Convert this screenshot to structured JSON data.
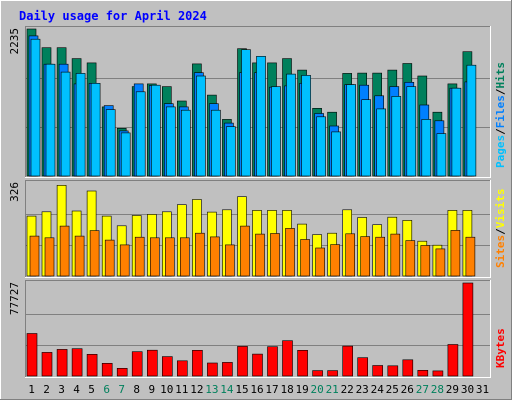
{
  "title": "Daily usage for April 2024",
  "colors": {
    "background": "#c0c0c0",
    "title": "#0000ff",
    "hits": "#00805c",
    "files": "#0080ff",
    "pages": "#00c0ff",
    "visits": "#ffff00",
    "sites": "#ff8000",
    "kbytes": "#ff0000",
    "weekend_label": "#00805c",
    "weekday_label": "#000080",
    "axis_label": "#000000"
  },
  "chart_data": [
    {
      "type": "bar",
      "name": "hits-files-pages",
      "ymax_label": "2235",
      "ylim": [
        0,
        2235
      ],
      "legend": [
        "Pages",
        "/",
        "Files",
        "/",
        "Hits"
      ],
      "categories": [
        "1",
        "2",
        "3",
        "4",
        "5",
        "6",
        "7",
        "8",
        "9",
        "10",
        "11",
        "12",
        "13",
        "14",
        "15",
        "16",
        "17",
        "18",
        "19",
        "20",
        "21",
        "22",
        "23",
        "24",
        "25",
        "26",
        "27",
        "28",
        "29",
        "30",
        "31"
      ],
      "series": [
        {
          "name": "Hits",
          "color": "#00805c",
          "values": [
            2235,
            1950,
            1950,
            1785,
            1720,
            1050,
            725,
            1360,
            1400,
            1360,
            1140,
            1705,
            1230,
            860,
            1935,
            1720,
            1720,
            1785,
            1610,
            1030,
            970,
            1560,
            1565,
            1565,
            1610,
            1710,
            1520,
            970,
            1400,
            1890,
            null
          ]
        },
        {
          "name": "Files",
          "color": "#0080ff",
          "values": [
            2130,
            1700,
            1700,
            1400,
            1410,
            1070,
            685,
            1400,
            1375,
            1100,
            1050,
            1570,
            1100,
            805,
            1570,
            1570,
            1350,
            1370,
            1410,
            950,
            760,
            1390,
            1380,
            1220,
            1360,
            1425,
            1080,
            840,
            1335,
            1430,
            null
          ]
        },
        {
          "name": "Pages",
          "color": "#00c0ff",
          "values": [
            2080,
            1700,
            1580,
            1560,
            1410,
            1010,
            655,
            1280,
            1380,
            1050,
            1000,
            1520,
            1000,
            750,
            1920,
            1820,
            1360,
            1550,
            1530,
            900,
            670,
            1390,
            1160,
            1020,
            1210,
            1360,
            860,
            645,
            1335,
            1685,
            null
          ]
        }
      ]
    },
    {
      "type": "bar",
      "name": "visits-sites",
      "ymax_label": "326",
      "ylim": [
        0,
        326
      ],
      "legend": [
        "Sites",
        "/",
        "Visits"
      ],
      "categories": [
        "1",
        "2",
        "3",
        "4",
        "5",
        "6",
        "7",
        "8",
        "9",
        "10",
        "11",
        "12",
        "13",
        "14",
        "15",
        "16",
        "17",
        "18",
        "19",
        "20",
        "21",
        "22",
        "23",
        "24",
        "25",
        "26",
        "27",
        "28",
        "29",
        "30",
        "31"
      ],
      "series": [
        {
          "name": "Visits",
          "color": "#ffff00",
          "values": [
            210,
            225,
            318,
            228,
            298,
            210,
            176,
            212,
            216,
            225,
            250,
            268,
            224,
            232,
            278,
            230,
            230,
            230,
            182,
            145,
            150,
            232,
            205,
            180,
            206,
            195,
            122,
            108,
            230,
            230,
            null
          ]
        },
        {
          "name": "Sites",
          "color": "#ff8000",
          "values": [
            140,
            134,
            175,
            140,
            159,
            126,
            109,
            136,
            134,
            134,
            134,
            150,
            137,
            109,
            175,
            147,
            149,
            167,
            128,
            98,
            110,
            148,
            138,
            136,
            147,
            124,
            107,
            95,
            160,
            136,
            null
          ]
        }
      ]
    },
    {
      "type": "bar",
      "name": "kbytes",
      "ymax_label": "77727",
      "ylim": [
        0,
        77727
      ],
      "legend": [
        "KBytes"
      ],
      "categories": [
        "1",
        "2",
        "3",
        "4",
        "5",
        "6",
        "7",
        "8",
        "9",
        "10",
        "11",
        "12",
        "13",
        "14",
        "15",
        "16",
        "17",
        "18",
        "19",
        "20",
        "21",
        "22",
        "23",
        "24",
        "25",
        "26",
        "27",
        "28",
        "29",
        "30",
        "31"
      ],
      "series": [
        {
          "name": "KBytes",
          "color": "#ff0000",
          "values": [
            35500,
            19700,
            22200,
            22800,
            18100,
            10600,
            6400,
            20300,
            21600,
            16200,
            12700,
            21500,
            10900,
            11400,
            24700,
            18300,
            24500,
            29500,
            21500,
            4500,
            4500,
            25000,
            15300,
            8800,
            8500,
            13500,
            4800,
            4300,
            26300,
            77727,
            null
          ]
        }
      ]
    }
  ],
  "x_labels": [
    {
      "label": "1",
      "weekend": false
    },
    {
      "label": "2",
      "weekend": false
    },
    {
      "label": "3",
      "weekend": false
    },
    {
      "label": "4",
      "weekend": false
    },
    {
      "label": "5",
      "weekend": false
    },
    {
      "label": "6",
      "weekend": true
    },
    {
      "label": "7",
      "weekend": true
    },
    {
      "label": "8",
      "weekend": false
    },
    {
      "label": "9",
      "weekend": false
    },
    {
      "label": "10",
      "weekend": false
    },
    {
      "label": "11",
      "weekend": false
    },
    {
      "label": "12",
      "weekend": false
    },
    {
      "label": "13",
      "weekend": true
    },
    {
      "label": "14",
      "weekend": true
    },
    {
      "label": "15",
      "weekend": false
    },
    {
      "label": "16",
      "weekend": false
    },
    {
      "label": "17",
      "weekend": false
    },
    {
      "label": "18",
      "weekend": false
    },
    {
      "label": "19",
      "weekend": false
    },
    {
      "label": "20",
      "weekend": true
    },
    {
      "label": "21",
      "weekend": true
    },
    {
      "label": "22",
      "weekend": false
    },
    {
      "label": "23",
      "weekend": false
    },
    {
      "label": "24",
      "weekend": false
    },
    {
      "label": "25",
      "weekend": false
    },
    {
      "label": "26",
      "weekend": false
    },
    {
      "label": "27",
      "weekend": true
    },
    {
      "label": "28",
      "weekend": true
    },
    {
      "label": "29",
      "weekend": false
    },
    {
      "label": "30",
      "weekend": false
    },
    {
      "label": "31",
      "weekend": false
    }
  ]
}
